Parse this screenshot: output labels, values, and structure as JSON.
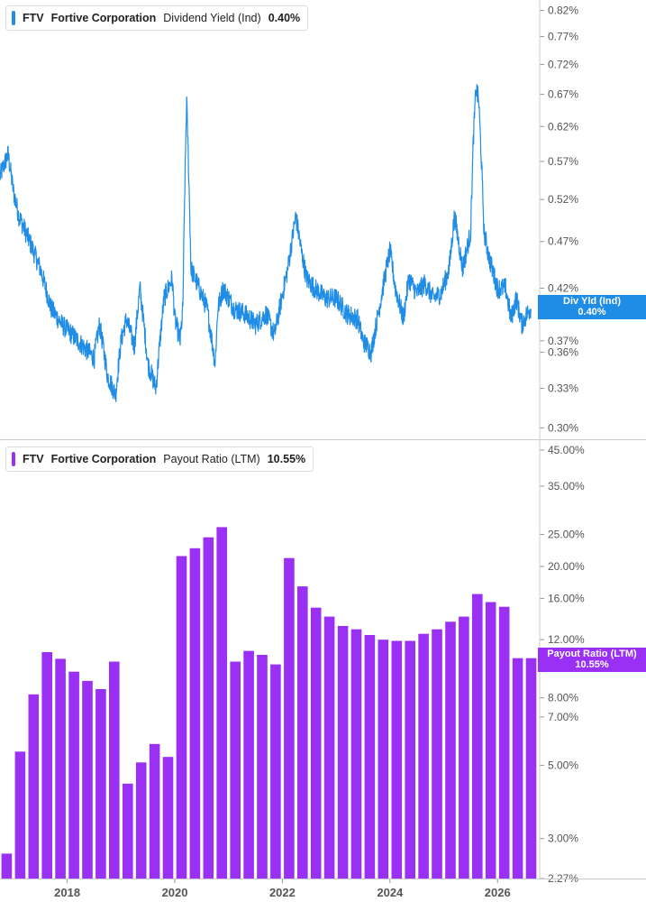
{
  "colors": {
    "yield_line": "#1f8ce6",
    "payout_bar": "#9b30f5",
    "axis_text": "#555555",
    "divider": "#c8ccd2"
  },
  "top_panel": {
    "legend": {
      "ticker": "FTV",
      "company": "Fortive Corporation",
      "metric": "Dividend Yield (Ind)",
      "value": "0.40%"
    },
    "tag": {
      "label": "Div Yld (Ind)",
      "value": "0.40%"
    }
  },
  "bottom_panel": {
    "legend": {
      "ticker": "FTV",
      "company": "Fortive Corporation",
      "metric": "Payout Ratio (LTM)",
      "value": "10.55%"
    },
    "tag": {
      "label": "Payout Ratio (LTM)",
      "value": "10.55%"
    }
  },
  "chart_data": [
    {
      "type": "line",
      "series": [
        {
          "name": "Dividend Yield (Ind)",
          "unit": "%"
        }
      ],
      "yscale": "log",
      "ylim": [
        0.297,
        0.83
      ],
      "xlim": [
        2016.75,
        2026.75
      ],
      "y_ticks": [
        "0.82%",
        "0.77%",
        "0.72%",
        "0.67%",
        "0.62%",
        "0.57%",
        "0.52%",
        "0.47%",
        "0.42%",
        "0.37%",
        "0.36%",
        "0.33%",
        "0.30%"
      ],
      "y_tick_values": [
        0.82,
        0.77,
        0.72,
        0.67,
        0.62,
        0.57,
        0.52,
        0.47,
        0.42,
        0.37,
        0.36,
        0.33,
        0.3
      ],
      "x": [
        2016.75,
        2016.9,
        2017.0,
        2017.1,
        2017.3,
        2017.5,
        2017.7,
        2017.9,
        2018.1,
        2018.3,
        2018.5,
        2018.6,
        2018.75,
        2018.9,
        2019.0,
        2019.1,
        2019.25,
        2019.35,
        2019.5,
        2019.65,
        2019.8,
        2019.95,
        2020.0,
        2020.1,
        2020.15,
        2020.22,
        2020.3,
        2020.45,
        2020.6,
        2020.75,
        2020.8,
        2020.9,
        2021.0,
        2021.1,
        2021.3,
        2021.5,
        2021.7,
        2021.85,
        2021.95,
        2022.1,
        2022.25,
        2022.35,
        2022.45,
        2022.6,
        2022.8,
        2023.0,
        2023.2,
        2023.4,
        2023.5,
        2023.65,
        2023.8,
        2023.9,
        2024.0,
        2024.1,
        2024.25,
        2024.35,
        2024.5,
        2024.65,
        2024.8,
        2024.95,
        2025.1,
        2025.2,
        2025.35,
        2025.5,
        2025.55,
        2025.6,
        2025.65,
        2025.75,
        2025.85,
        2025.95,
        2026.0,
        2026.15,
        2026.25,
        2026.35,
        2026.45,
        2026.55,
        2026.62
      ],
      "y": [
        0.55,
        0.58,
        0.53,
        0.5,
        0.47,
        0.44,
        0.4,
        0.385,
        0.375,
        0.365,
        0.355,
        0.385,
        0.34,
        0.325,
        0.37,
        0.39,
        0.365,
        0.42,
        0.35,
        0.33,
        0.41,
        0.43,
        0.39,
        0.37,
        0.4,
        0.66,
        0.44,
        0.42,
        0.4,
        0.35,
        0.4,
        0.42,
        0.41,
        0.4,
        0.395,
        0.385,
        0.395,
        0.375,
        0.4,
        0.44,
        0.5,
        0.46,
        0.43,
        0.42,
        0.41,
        0.41,
        0.395,
        0.39,
        0.37,
        0.36,
        0.4,
        0.43,
        0.46,
        0.42,
        0.39,
        0.43,
        0.415,
        0.425,
        0.41,
        0.415,
        0.44,
        0.5,
        0.44,
        0.48,
        0.6,
        0.68,
        0.66,
        0.48,
        0.45,
        0.43,
        0.42,
        0.42,
        0.39,
        0.41,
        0.385,
        0.395,
        0.4
      ]
    },
    {
      "type": "bar",
      "series": [
        {
          "name": "Payout Ratio (LTM)",
          "unit": "%"
        }
      ],
      "yscale": "log",
      "ylim": [
        2.27,
        45.0
      ],
      "xlim": [
        2016.75,
        2026.75
      ],
      "y_ticks": [
        "45.00%",
        "35.00%",
        "25.00%",
        "20.00%",
        "16.00%",
        "12.00%",
        "8.00%",
        "7.00%",
        "5.00%",
        "3.00%",
        "2.27%"
      ],
      "y_tick_values": [
        45,
        35,
        25,
        20,
        16,
        12,
        8,
        7,
        5,
        3,
        2.27
      ],
      "x_ticks": [
        "2018",
        "2020",
        "2022",
        "2024",
        "2026"
      ],
      "x_tick_values": [
        2018.0,
        2020.0,
        2022.0,
        2024.0,
        2026.0
      ],
      "x": [
        2016.875,
        2017.125,
        2017.375,
        2017.625,
        2017.875,
        2018.125,
        2018.375,
        2018.625,
        2018.875,
        2019.125,
        2019.375,
        2019.625,
        2019.875,
        2020.125,
        2020.375,
        2020.625,
        2020.875,
        2021.125,
        2021.375,
        2021.625,
        2021.875,
        2022.125,
        2022.375,
        2022.625,
        2022.875,
        2023.125,
        2023.375,
        2023.625,
        2023.875,
        2024.125,
        2024.375,
        2024.625,
        2024.875,
        2025.125,
        2025.375,
        2025.625,
        2025.875,
        2026.125,
        2026.375,
        2026.625
      ],
      "values": [
        2.7,
        5.5,
        8.2,
        11.0,
        10.5,
        9.6,
        9.0,
        8.5,
        10.3,
        4.4,
        5.1,
        5.8,
        5.3,
        21.5,
        22.7,
        24.5,
        26.3,
        10.3,
        11.1,
        10.8,
        10.1,
        21.2,
        17.4,
        15.0,
        14.1,
        13.2,
        12.9,
        12.4,
        12.0,
        11.9,
        11.9,
        12.5,
        12.9,
        13.6,
        14.1,
        16.5,
        15.6,
        15.1,
        10.55,
        10.55
      ]
    }
  ]
}
